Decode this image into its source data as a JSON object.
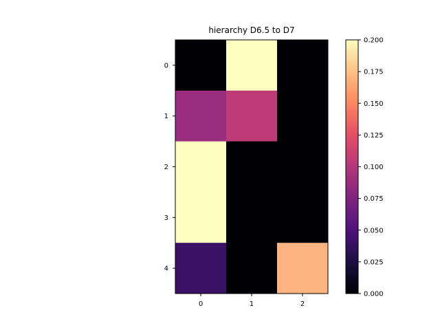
{
  "chart_data": {
    "type": "heatmap",
    "title": "hierarchy D6.5 to D7",
    "xlabel": "",
    "ylabel": "",
    "colormap": "magma",
    "x_ticks": [
      "0",
      "1",
      "2"
    ],
    "y_ticks": [
      "0",
      "1",
      "2",
      "3",
      "4"
    ],
    "values": [
      [
        0.0,
        0.2,
        0.0
      ],
      [
        0.088,
        0.105,
        0.0
      ],
      [
        0.2,
        0.0,
        0.0
      ],
      [
        0.2,
        0.0,
        0.0
      ],
      [
        0.04,
        0.0,
        0.17
      ]
    ],
    "colorbar": {
      "range": [
        0.0,
        0.2
      ],
      "ticks": [
        "0.000",
        "0.025",
        "0.050",
        "0.075",
        "0.100",
        "0.125",
        "0.150",
        "0.175",
        "0.200"
      ]
    },
    "grid": false
  }
}
